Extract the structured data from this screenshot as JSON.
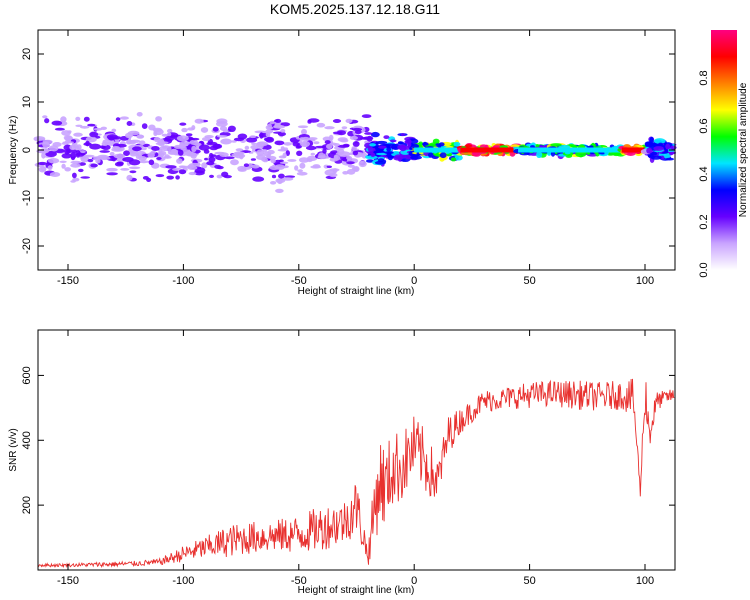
{
  "title": "KOM5.2025.137.12.18.G11",
  "chart_data": [
    {
      "type": "heatmap",
      "xlabel": "Height of straight line (km)",
      "ylabel": "Frequency (Hz)",
      "xlim": [
        -163,
        113
      ],
      "ylim": [
        -25,
        25
      ],
      "xticks": [
        -150,
        -100,
        -50,
        0,
        50,
        100
      ],
      "yticks": [
        -20,
        -10,
        0,
        10,
        20
      ],
      "colorbar": {
        "label": "Normalized spectral amplitude",
        "range": [
          0,
          1
        ],
        "ticks": [
          "0.0",
          "0.2",
          "0.4",
          "0.6",
          "0.8"
        ],
        "colors": [
          "#ffffff",
          "#c9a4ff",
          "#6600ff",
          "#0000ff",
          "#00e5ff",
          "#00ff00",
          "#ffff00",
          "#ff8000",
          "#ff0000",
          "#ff0080"
        ]
      },
      "ridge": {
        "note": "energy concentrated near 0 Hz",
        "segments": [
          {
            "x": [
              -163,
              -20
            ],
            "spread_hz": 6,
            "amplitude": 0.15
          },
          {
            "x": [
              -20,
              0
            ],
            "spread_hz": 3,
            "amplitude": 0.3
          },
          {
            "x": [
              0,
              20
            ],
            "spread_hz": 1.5,
            "amplitude": 0.5
          },
          {
            "x": [
              20,
              45
            ],
            "spread_hz": 0.8,
            "amplitude": 0.9
          },
          {
            "x": [
              45,
              90
            ],
            "spread_hz": 1,
            "amplitude": 0.45
          },
          {
            "x": [
              90,
              100
            ],
            "spread_hz": 0.8,
            "amplitude": 0.9
          },
          {
            "x": [
              100,
              113
            ],
            "spread_hz": 2,
            "amplitude": 0.3
          }
        ]
      }
    },
    {
      "type": "line",
      "xlabel": "Height of straight line (km)",
      "ylabel": "SNR (v/v)",
      "xlim": [
        -163,
        113
      ],
      "ylim": [
        0,
        740
      ],
      "xticks": [
        -150,
        -100,
        -50,
        0,
        50,
        100
      ],
      "yticks": [
        200,
        400,
        600
      ],
      "color": "#e8302e",
      "x": [
        -163,
        -150,
        -130,
        -120,
        -110,
        -100,
        -90,
        -80,
        -70,
        -60,
        -50,
        -40,
        -30,
        -25,
        -20,
        -17,
        -15,
        -12,
        -10,
        -5,
        0,
        5,
        10,
        15,
        20,
        25,
        30,
        40,
        50,
        60,
        70,
        80,
        90,
        95,
        98,
        100,
        102,
        105,
        110,
        113
      ],
      "y": [
        15,
        15,
        18,
        20,
        25,
        50,
        70,
        90,
        100,
        105,
        110,
        130,
        150,
        200,
        40,
        200,
        280,
        250,
        310,
        320,
        380,
        330,
        270,
        420,
        460,
        490,
        520,
        530,
        540,
        545,
        540,
        535,
        540,
        530,
        240,
        560,
        420,
        520,
        535,
        540
      ],
      "noise": [
        5,
        5,
        8,
        8,
        10,
        25,
        35,
        50,
        50,
        50,
        60,
        70,
        70,
        90,
        30,
        120,
        140,
        130,
        120,
        110,
        100,
        100,
        70,
        60,
        40,
        35,
        35,
        35,
        40,
        40,
        45,
        45,
        45,
        60,
        20,
        80,
        60,
        30,
        20,
        20
      ]
    }
  ]
}
